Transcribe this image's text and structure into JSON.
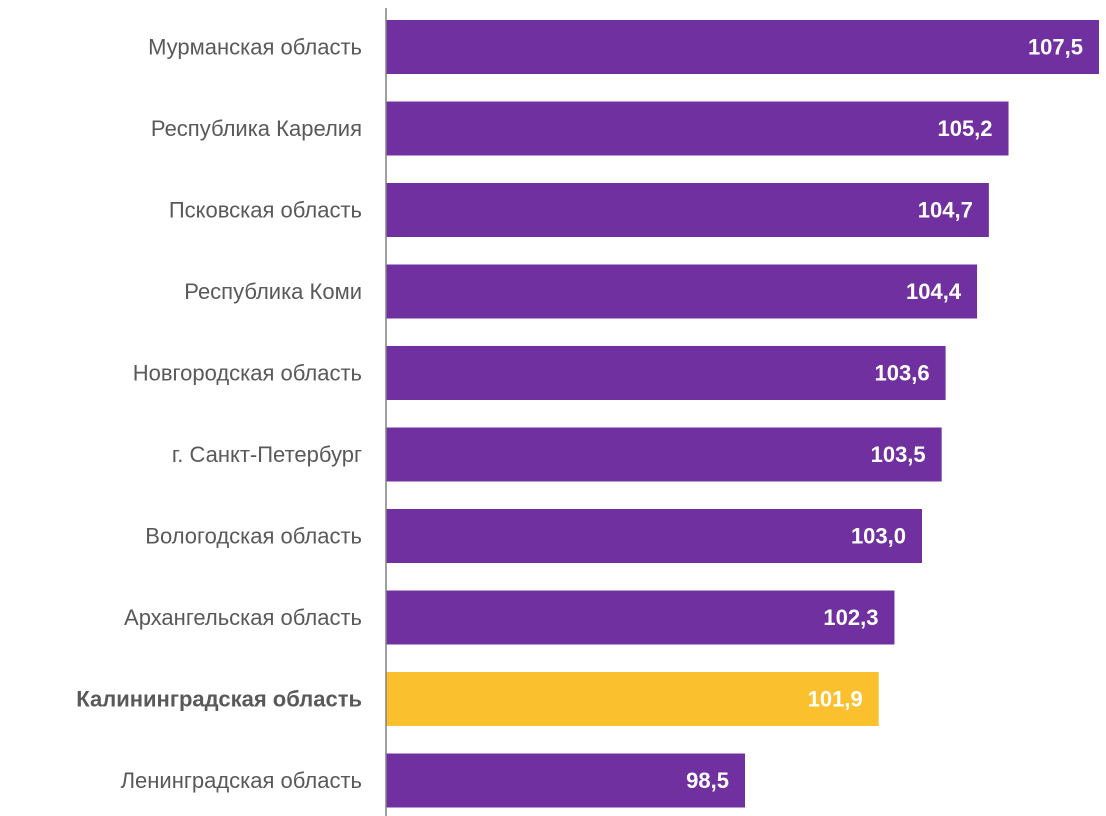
{
  "chart_data": {
    "type": "bar",
    "orientation": "horizontal",
    "categories": [
      "Мурманская область",
      "Республика Карелия",
      "Псковская область",
      "Республика Коми",
      "Новгородская область",
      "г. Санкт-Петербург",
      "Вологодская область",
      "Архангельская область",
      "Калининградская область",
      "Ленинградская область"
    ],
    "values": [
      107.5,
      105.2,
      104.7,
      104.4,
      103.6,
      103.5,
      103.0,
      102.3,
      101.9,
      98.5
    ],
    "value_labels": [
      "107,5",
      "105,2",
      "104,7",
      "104,4",
      "103,6",
      "103,5",
      "103,0",
      "102,3",
      "101,9",
      "98,5"
    ],
    "highlight_index": 8,
    "highlight_label_bold": true,
    "colors": {
      "bar": "#7030a0",
      "highlight": "#fbc02d",
      "axis": "#808080"
    },
    "xlabel": "",
    "ylabel": "",
    "title": "",
    "grid": false,
    "legend": "none"
  }
}
